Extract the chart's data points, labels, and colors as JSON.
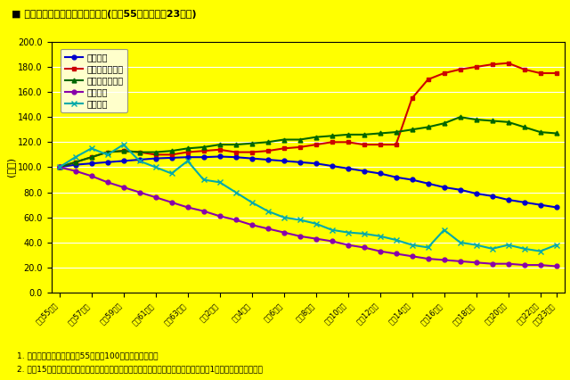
{
  "title": "■ 災害共済給付の給付状況の推移(昭和55年度〜平成23年度)",
  "ylabel": "(指数)",
  "background_color": "#FFFF00",
  "plot_background": "#FFFF00",
  "x_labels_display": [
    "昭和55年度",
    "昭和57年度",
    "昭和59年度",
    "昭和61年度",
    "昭和63年度",
    "平成2年度",
    "平成4年度",
    "平成6年度",
    "平成8年度",
    "平成10年度",
    "平成12年度",
    "平成14年度",
    "平成16年度",
    "平成18年度",
    "平成20年度",
    "平成22年度",
    "平成23年度"
  ],
  "x_tick_positions": [
    0,
    2,
    4,
    6,
    8,
    10,
    12,
    14,
    16,
    18,
    20,
    22,
    24,
    26,
    28,
    30,
    31
  ],
  "n_points": 32,
  "ylim": [
    0.0,
    200.0
  ],
  "yticks": [
    0.0,
    20.0,
    40.0,
    60.0,
    80.0,
    100.0,
    120.0,
    140.0,
    160.0,
    180.0,
    200.0
  ],
  "note1": "1. グラフ中の指数は、昭和55年度を100として表している",
  "note2": "2. 平成15年度における給付件数の増加は、件数の積算方法を変更し、当該月数ごとに1件とした影響が強い。",
  "series": [
    {
      "name": "加入者数",
      "color": "#0000CC",
      "marker": "o",
      "linewidth": 1.5,
      "markersize": 3.5,
      "values": [
        100.0,
        102.0,
        103.0,
        104.0,
        105.0,
        106.0,
        107.0,
        107.5,
        108.0,
        108.0,
        108.5,
        108.0,
        107.0,
        106.0,
        105.0,
        104.0,
        103.0,
        101.0,
        99.0,
        97.0,
        95.0,
        92.0,
        90.0,
        87.0,
        84.0,
        82.0,
        79.0,
        77.0,
        74.0,
        72.0,
        70.0,
        68.0
      ]
    },
    {
      "name": "医療費給付件数",
      "color": "#CC0000",
      "marker": "s",
      "linewidth": 1.5,
      "markersize": 3.5,
      "values": [
        100.0,
        104.0,
        108.0,
        112.0,
        113.0,
        112.0,
        110.0,
        110.0,
        112.0,
        113.0,
        114.0,
        112.0,
        112.0,
        113.0,
        115.0,
        116.0,
        118.0,
        120.0,
        120.0,
        118.0,
        118.0,
        118.0,
        155.0,
        170.0,
        175.0,
        178.0,
        180.0,
        182.0,
        183.0,
        178.0,
        175.0,
        175.0
      ]
    },
    {
      "name": "医療費発生件数",
      "color": "#006600",
      "marker": "^",
      "linewidth": 1.5,
      "markersize": 3.5,
      "values": [
        100.0,
        104.0,
        108.0,
        112.0,
        113.0,
        112.0,
        112.0,
        113.0,
        115.0,
        116.0,
        118.0,
        118.0,
        119.0,
        120.0,
        122.0,
        122.0,
        124.0,
        125.0,
        126.0,
        126.0,
        127.0,
        128.0,
        130.0,
        132.0,
        135.0,
        140.0,
        138.0,
        137.0,
        136.0,
        132.0,
        128.0,
        127.0
      ]
    },
    {
      "name": "障害件数",
      "color": "#8800AA",
      "marker": "o",
      "linewidth": 1.5,
      "markersize": 3.5,
      "values": [
        100.0,
        97.0,
        93.0,
        88.0,
        84.0,
        80.0,
        76.0,
        72.0,
        68.0,
        65.0,
        61.0,
        58.0,
        54.0,
        51.0,
        48.0,
        45.0,
        43.0,
        41.0,
        38.0,
        36.0,
        33.0,
        31.0,
        29.0,
        27.0,
        26.0,
        25.0,
        24.0,
        23.0,
        23.0,
        22.0,
        22.0,
        21.0
      ]
    },
    {
      "name": "死亡件数",
      "color": "#00AAAA",
      "marker": "x",
      "linewidth": 1.5,
      "markersize": 4.0,
      "values": [
        100.0,
        108.0,
        115.0,
        110.0,
        118.0,
        105.0,
        100.0,
        95.0,
        105.0,
        90.0,
        88.0,
        80.0,
        72.0,
        65.0,
        60.0,
        58.0,
        55.0,
        50.0,
        48.0,
        47.0,
        45.0,
        42.0,
        38.0,
        36.0,
        50.0,
        40.0,
        38.0,
        35.0,
        38.0,
        35.0,
        33.0,
        38.0
      ]
    }
  ]
}
